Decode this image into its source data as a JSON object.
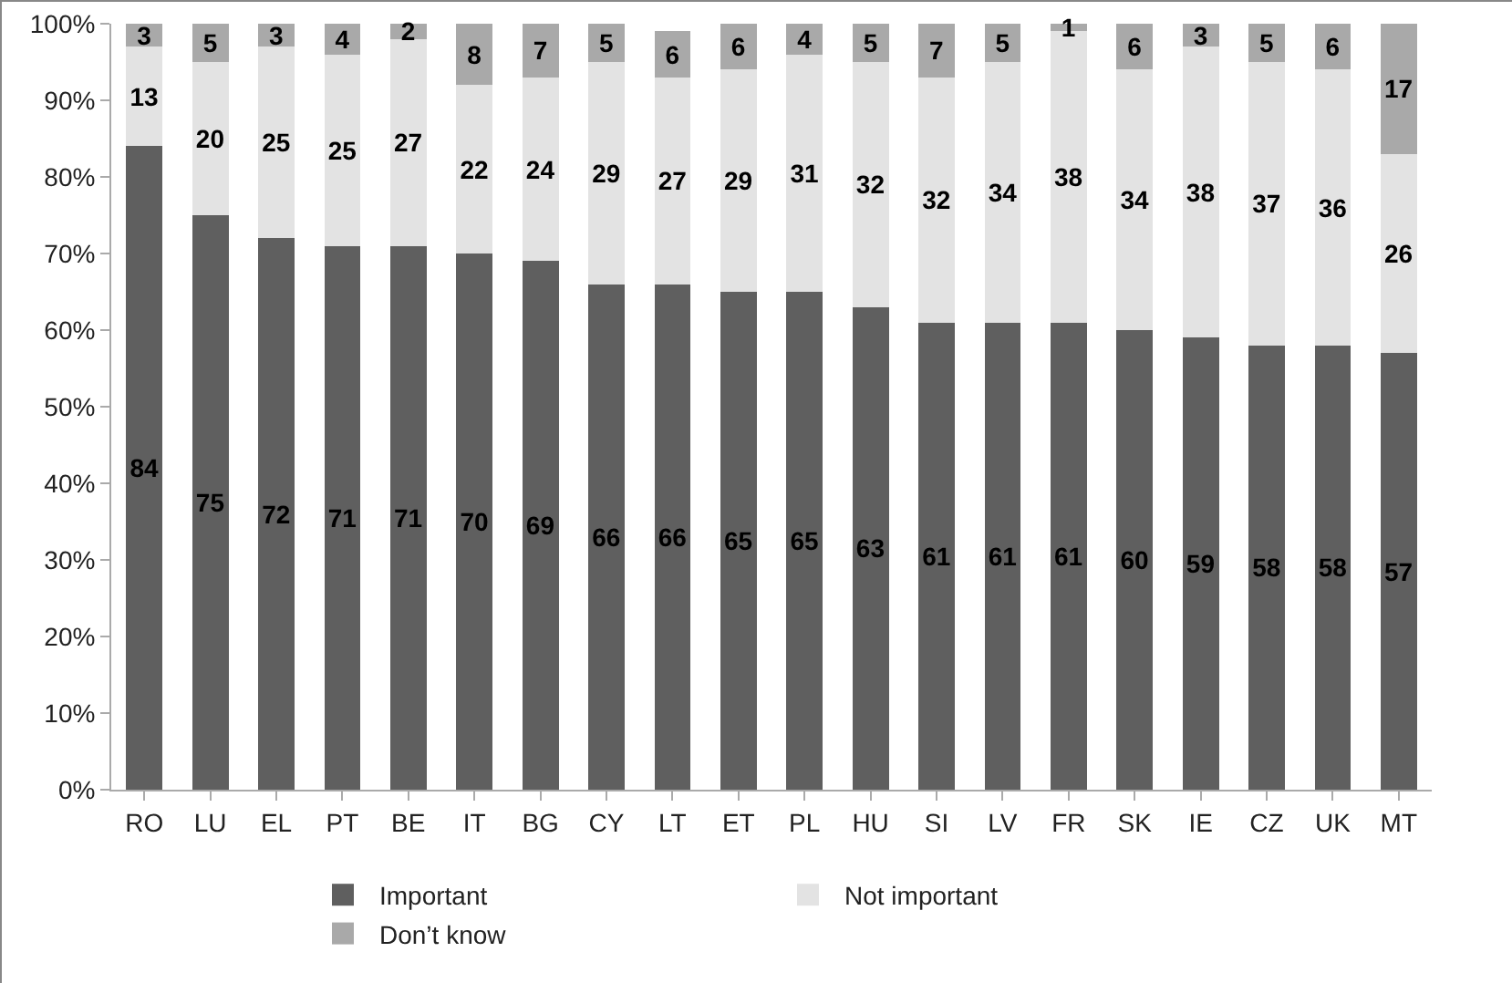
{
  "chart_data": {
    "type": "bar",
    "stacked": true,
    "categories": [
      "RO",
      "LU",
      "EL",
      "PT",
      "BE",
      "IT",
      "BG",
      "CY",
      "LT",
      "ET",
      "PL",
      "HU",
      "SI",
      "LV",
      "FR",
      "SK",
      "IE",
      "CZ",
      "UK",
      "MT"
    ],
    "series": [
      {
        "name": "Important",
        "color": "#5f5f5f",
        "values": [
          84,
          75,
          72,
          71,
          71,
          70,
          69,
          66,
          66,
          65,
          65,
          63,
          61,
          61,
          61,
          60,
          59,
          58,
          58,
          57
        ]
      },
      {
        "name": "Not important",
        "color": "#e3e3e3",
        "values": [
          13,
          20,
          25,
          25,
          27,
          22,
          24,
          29,
          27,
          29,
          31,
          32,
          32,
          34,
          38,
          34,
          38,
          37,
          36,
          26
        ]
      },
      {
        "name": "Don’t know",
        "color": "#a9a9a9",
        "values": [
          3,
          5,
          3,
          4,
          2,
          8,
          7,
          5,
          6,
          6,
          4,
          5,
          7,
          5,
          1,
          6,
          3,
          5,
          6,
          17
        ]
      }
    ],
    "ylim": [
      0,
      100
    ],
    "yticks": [
      {
        "value": 0,
        "label": "0%"
      },
      {
        "value": 10,
        "label": "10%"
      },
      {
        "value": 20,
        "label": "20%"
      },
      {
        "value": 30,
        "label": "30%"
      },
      {
        "value": 40,
        "label": "40%"
      },
      {
        "value": 50,
        "label": "50%"
      },
      {
        "value": 60,
        "label": "60%"
      },
      {
        "value": 70,
        "label": "70%"
      },
      {
        "value": 80,
        "label": "80%"
      },
      {
        "value": 90,
        "label": "90%"
      },
      {
        "value": 100,
        "label": "100%"
      }
    ],
    "data_labels": true,
    "legend": "bottom",
    "grid": false
  }
}
